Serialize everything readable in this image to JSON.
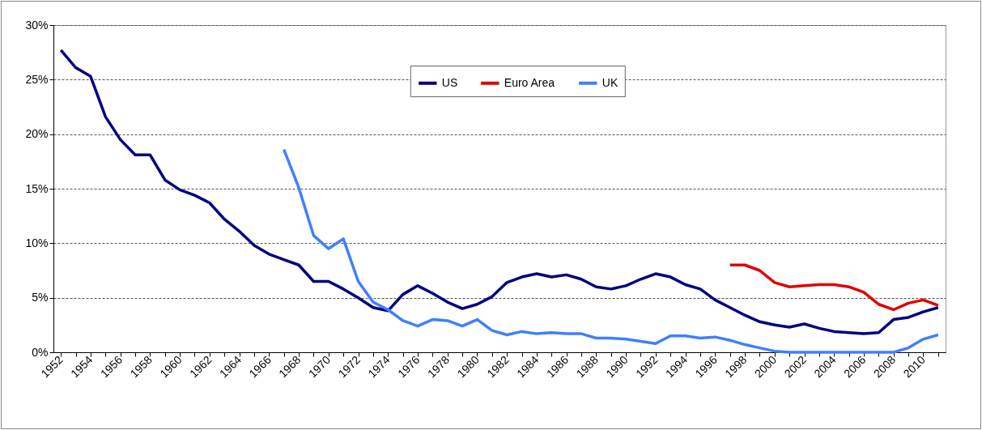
{
  "chart_data": {
    "type": "line",
    "categories": [
      "1952",
      null,
      "1954",
      null,
      "1956",
      null,
      "1958",
      null,
      "1960",
      null,
      "1962",
      null,
      "1964",
      null,
      "1966",
      null,
      "1968",
      null,
      "1970",
      null,
      "1972",
      null,
      "1974",
      null,
      "1976",
      null,
      "1978",
      null,
      "1980",
      null,
      "1982",
      null,
      "1984",
      null,
      "1986",
      null,
      "1988",
      null,
      "1990",
      null,
      "1992",
      null,
      "1994",
      null,
      "1996",
      null,
      "1998",
      null,
      "2000",
      null,
      "2002",
      null,
      "2004",
      null,
      "2006",
      null,
      "2008",
      null,
      "2010",
      null
    ],
    "series": [
      {
        "name": "US",
        "color": "#000080",
        "values": [
          27.7,
          26.1,
          25.3,
          21.6,
          19.5,
          18.1,
          18.1,
          15.8,
          14.9,
          14.4,
          13.7,
          12.2,
          11.1,
          9.8,
          9.0,
          8.5,
          8.0,
          6.5,
          6.5,
          5.8,
          5.0,
          4.1,
          3.8,
          5.3,
          6.1,
          5.4,
          4.6,
          4.0,
          4.4,
          5.1,
          6.4,
          6.9,
          7.2,
          6.9,
          7.1,
          6.7,
          6.0,
          5.8,
          6.1,
          6.7,
          7.2,
          6.9,
          6.2,
          5.8,
          4.8,
          4.1,
          3.4,
          2.8,
          2.5,
          2.3,
          2.6,
          2.2,
          1.9,
          1.8,
          1.7,
          1.8,
          3.0,
          3.2,
          3.7,
          4.1
        ]
      },
      {
        "name": "Euro Area",
        "color": "#e00000",
        "values": [
          null,
          null,
          null,
          null,
          null,
          null,
          null,
          null,
          null,
          null,
          null,
          null,
          null,
          null,
          null,
          null,
          null,
          null,
          null,
          null,
          null,
          null,
          null,
          null,
          null,
          null,
          null,
          null,
          null,
          null,
          null,
          null,
          null,
          null,
          null,
          null,
          null,
          null,
          null,
          null,
          null,
          null,
          null,
          null,
          null,
          8.0,
          8.0,
          7.5,
          6.4,
          6.0,
          6.1,
          6.2,
          6.2,
          6.0,
          5.5,
          4.4,
          3.9,
          4.5,
          4.8,
          4.3
        ]
      },
      {
        "name": "UK",
        "color": "#3f7fff",
        "values": [
          null,
          null,
          null,
          null,
          null,
          null,
          null,
          null,
          null,
          null,
          null,
          null,
          null,
          null,
          null,
          18.6,
          15.1,
          10.7,
          9.5,
          10.4,
          6.5,
          4.6,
          3.9,
          2.9,
          2.4,
          3.0,
          2.9,
          2.4,
          3.0,
          2.0,
          1.6,
          1.9,
          1.7,
          1.8,
          1.7,
          1.7,
          1.3,
          1.3,
          1.2,
          1.0,
          0.8,
          1.5,
          1.5,
          1.3,
          1.4,
          1.1,
          0.7,
          0.4,
          0.1,
          0.0,
          0.0,
          0.0,
          0.0,
          0.0,
          0.0,
          0.0,
          0.0,
          0.4,
          1.2,
          1.6
        ]
      }
    ],
    "ylim": [
      0,
      30
    ],
    "yticks": [
      {
        "value": 0,
        "label": "0%"
      },
      {
        "value": 5,
        "label": "5%"
      },
      {
        "value": 10,
        "label": "10%"
      },
      {
        "value": 15,
        "label": "15%"
      },
      {
        "value": 20,
        "label": "20%"
      },
      {
        "value": 25,
        "label": "25%"
      },
      {
        "value": 30,
        "label": "30%"
      }
    ],
    "grid": "y",
    "legend": "top",
    "line_style": "solid"
  }
}
